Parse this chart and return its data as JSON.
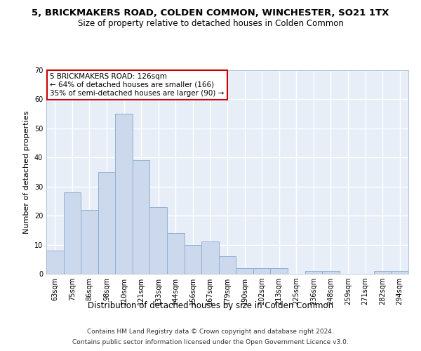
{
  "title": "5, BRICKMAKERS ROAD, COLDEN COMMON, WINCHESTER, SO21 1TX",
  "subtitle": "Size of property relative to detached houses in Colden Common",
  "xlabel": "Distribution of detached houses by size in Colden Common",
  "ylabel": "Number of detached properties",
  "categories": [
    "63sqm",
    "75sqm",
    "86sqm",
    "98sqm",
    "110sqm",
    "121sqm",
    "133sqm",
    "144sqm",
    "156sqm",
    "167sqm",
    "179sqm",
    "190sqm",
    "202sqm",
    "213sqm",
    "225sqm",
    "236sqm",
    "248sqm",
    "259sqm",
    "271sqm",
    "282sqm",
    "294sqm"
  ],
  "values": [
    8,
    28,
    22,
    35,
    55,
    39,
    23,
    14,
    10,
    11,
    6,
    2,
    2,
    2,
    0,
    1,
    1,
    0,
    0,
    1,
    1
  ],
  "bar_color": "#ccd9ed",
  "bar_edge_color": "#8fafd4",
  "ylim": [
    0,
    70
  ],
  "yticks": [
    0,
    10,
    20,
    30,
    40,
    50,
    60,
    70
  ],
  "background_color": "#e8eef8",
  "grid_color": "#ffffff",
  "annotation_box_text": "5 BRICKMAKERS ROAD: 126sqm\n← 64% of detached houses are smaller (166)\n35% of semi-detached houses are larger (90) →",
  "annotation_box_color": "#cc0000",
  "footer_line1": "Contains HM Land Registry data © Crown copyright and database right 2024.",
  "footer_line2": "Contains public sector information licensed under the Open Government Licence v3.0.",
  "title_fontsize": 9.5,
  "subtitle_fontsize": 8.5,
  "xlabel_fontsize": 8.5,
  "ylabel_fontsize": 8,
  "tick_fontsize": 7,
  "annotation_fontsize": 7.5,
  "footer_fontsize": 6.5,
  "fig_background": "#ffffff"
}
